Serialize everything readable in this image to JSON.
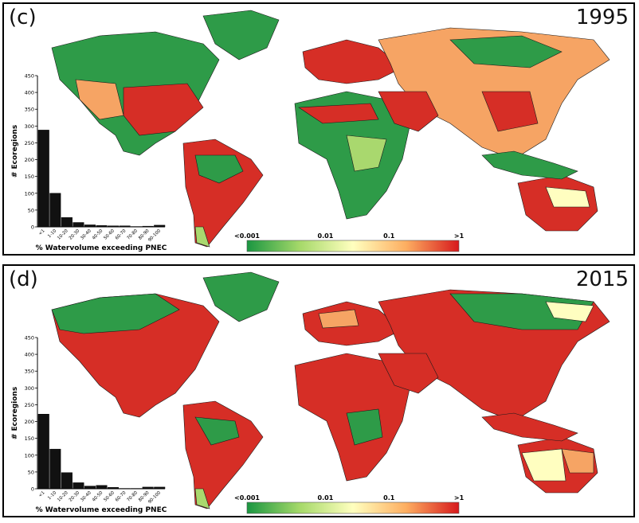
{
  "panels": [
    {
      "label": "(c)",
      "year": "1995",
      "histogram": {
        "type": "bar",
        "ylabel": "# Ecoregions",
        "xlabel": "% Watervolume exceeding PNEC",
        "categories": [
          "<1",
          "1-10",
          "10-20",
          "20-30",
          "30-40",
          "40-50",
          "50-60",
          "60-70",
          "70-80",
          "80-90",
          "90-100"
        ],
        "values": [
          288,
          100,
          28,
          13,
          6,
          4,
          3,
          3,
          1,
          2,
          5
        ],
        "yticks": [
          "0",
          "50",
          "100",
          "150",
          "200",
          "250",
          "300",
          "350",
          "400",
          "450"
        ],
        "ylim": [
          0,
          450
        ]
      },
      "colorbar": {
        "labels": [
          "<0.001",
          "0.01",
          "0.1",
          ">1"
        ],
        "colors": [
          "#1a9641",
          "#a6d96a",
          "#ffffbf",
          "#fdae61",
          "#d7191c"
        ]
      }
    },
    {
      "label": "(d)",
      "year": "2015",
      "histogram": {
        "type": "bar",
        "ylabel": "# Ecoregions",
        "xlabel": "% Watervolume exceeding PNEC",
        "categories": [
          "<1",
          "1-10",
          "10-20",
          "20-30",
          "30-40",
          "40-50",
          "50-60",
          "60-70",
          "70-80",
          "80-90",
          "90-100"
        ],
        "values": [
          222,
          118,
          48,
          18,
          8,
          10,
          4,
          1,
          1,
          5,
          5
        ],
        "yticks": [
          "0",
          "50",
          "100",
          "150",
          "200",
          "250",
          "300",
          "350",
          "400",
          "450"
        ],
        "ylim": [
          0,
          450
        ]
      },
      "colorbar": {
        "labels": [
          "<0.001",
          "0.01",
          "0.1",
          ">1"
        ],
        "colors": [
          "#1a9641",
          "#a6d96a",
          "#ffffbf",
          "#fdae61",
          "#d7191c"
        ]
      }
    }
  ],
  "map_colors": {
    "green": "#2e9b48",
    "lightgreen": "#a9d86e",
    "yellow": "#fffec0",
    "orange": "#f6a464",
    "red": "#d62e26"
  },
  "chart_data": [
    {
      "type": "bar",
      "title": "1995",
      "xlabel": "% Watervolume exceeding PNEC",
      "ylabel": "# Ecoregions",
      "categories": [
        "<1",
        "1-10",
        "10-20",
        "20-30",
        "30-40",
        "40-50",
        "50-60",
        "60-70",
        "70-80",
        "80-90",
        "90-100"
      ],
      "values": [
        288,
        100,
        28,
        13,
        6,
        4,
        3,
        3,
        1,
        2,
        5
      ],
      "ylim": [
        0,
        450
      ]
    },
    {
      "type": "bar",
      "title": "2015",
      "xlabel": "% Watervolume exceeding PNEC",
      "ylabel": "# Ecoregions",
      "categories": [
        "<1",
        "1-10",
        "10-20",
        "20-30",
        "30-40",
        "40-50",
        "50-60",
        "60-70",
        "70-80",
        "80-90",
        "90-100"
      ],
      "values": [
        222,
        118,
        48,
        18,
        8,
        10,
        4,
        1,
        1,
        5,
        5
      ],
      "ylim": [
        0,
        450
      ]
    }
  ]
}
